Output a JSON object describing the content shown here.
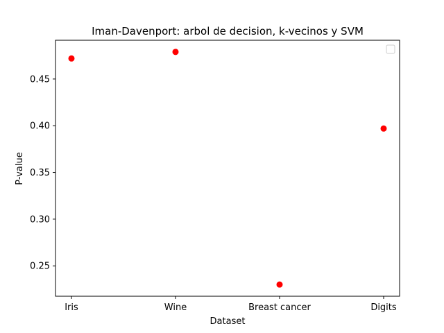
{
  "chart_data": {
    "type": "scatter",
    "title": "Iman-Davenport: arbol de decision, k-vecinos y SVM",
    "xlabel": "Dataset",
    "ylabel": "P-value",
    "categories": [
      "Iris",
      "Wine",
      "Breast cancer",
      "Digits"
    ],
    "values": [
      0.472,
      0.479,
      0.23,
      0.397
    ],
    "yticks": [
      "0.25",
      "0.30",
      "0.35",
      "0.40",
      "0.45"
    ],
    "ylim": [
      0.2175,
      0.4915
    ],
    "grid": false,
    "legend": "top-right",
    "marker_color": "#ff0000"
  }
}
